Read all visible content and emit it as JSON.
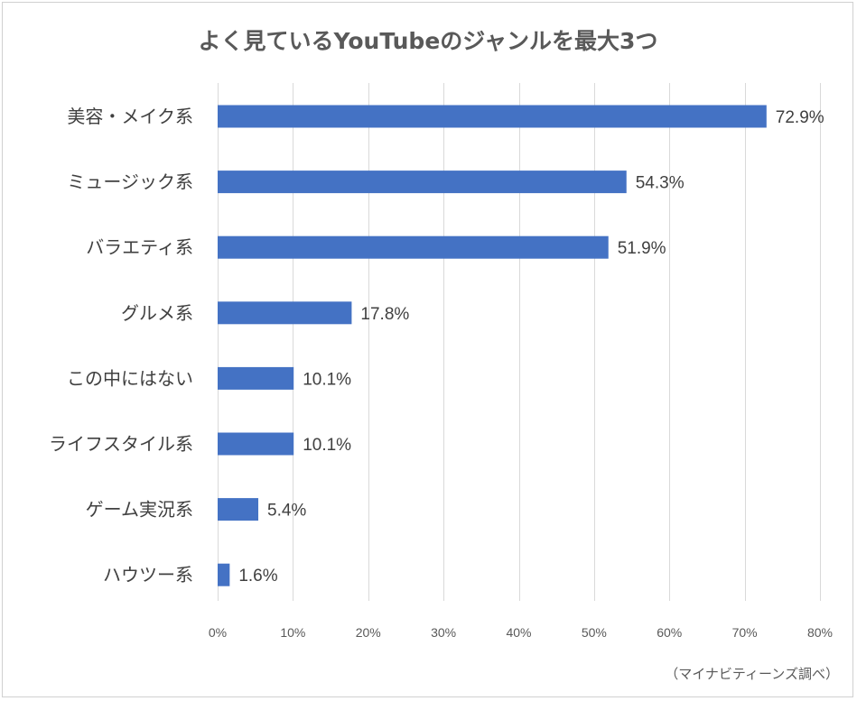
{
  "chart_data": {
    "type": "bar",
    "orientation": "horizontal",
    "title": "よく見ているYouTubeのジャンルを最大3つ",
    "categories": [
      "美容・メイク系",
      "ミュージック系",
      "バラエティ系",
      "グルメ系",
      "この中にはない",
      "ライフスタイル系",
      "ゲーム実況系",
      "ハウツー系"
    ],
    "values": [
      72.9,
      54.3,
      51.9,
      17.8,
      10.1,
      10.1,
      5.4,
      1.6
    ],
    "data_labels": [
      "72.9%",
      "54.3%",
      "51.9%",
      "17.8%",
      "10.1%",
      "10.1%",
      "5.4%",
      "1.6%"
    ],
    "xlim": [
      0,
      80
    ],
    "x_ticks": [
      0,
      10,
      20,
      30,
      40,
      50,
      60,
      70,
      80
    ],
    "x_tick_labels": [
      "0%",
      "10%",
      "20%",
      "30%",
      "40%",
      "50%",
      "60%",
      "70%",
      "80%"
    ],
    "grid": true,
    "legend": "none",
    "bar_color": "#4472C4",
    "source_note": "（マイナビティーンズ調べ）"
  }
}
